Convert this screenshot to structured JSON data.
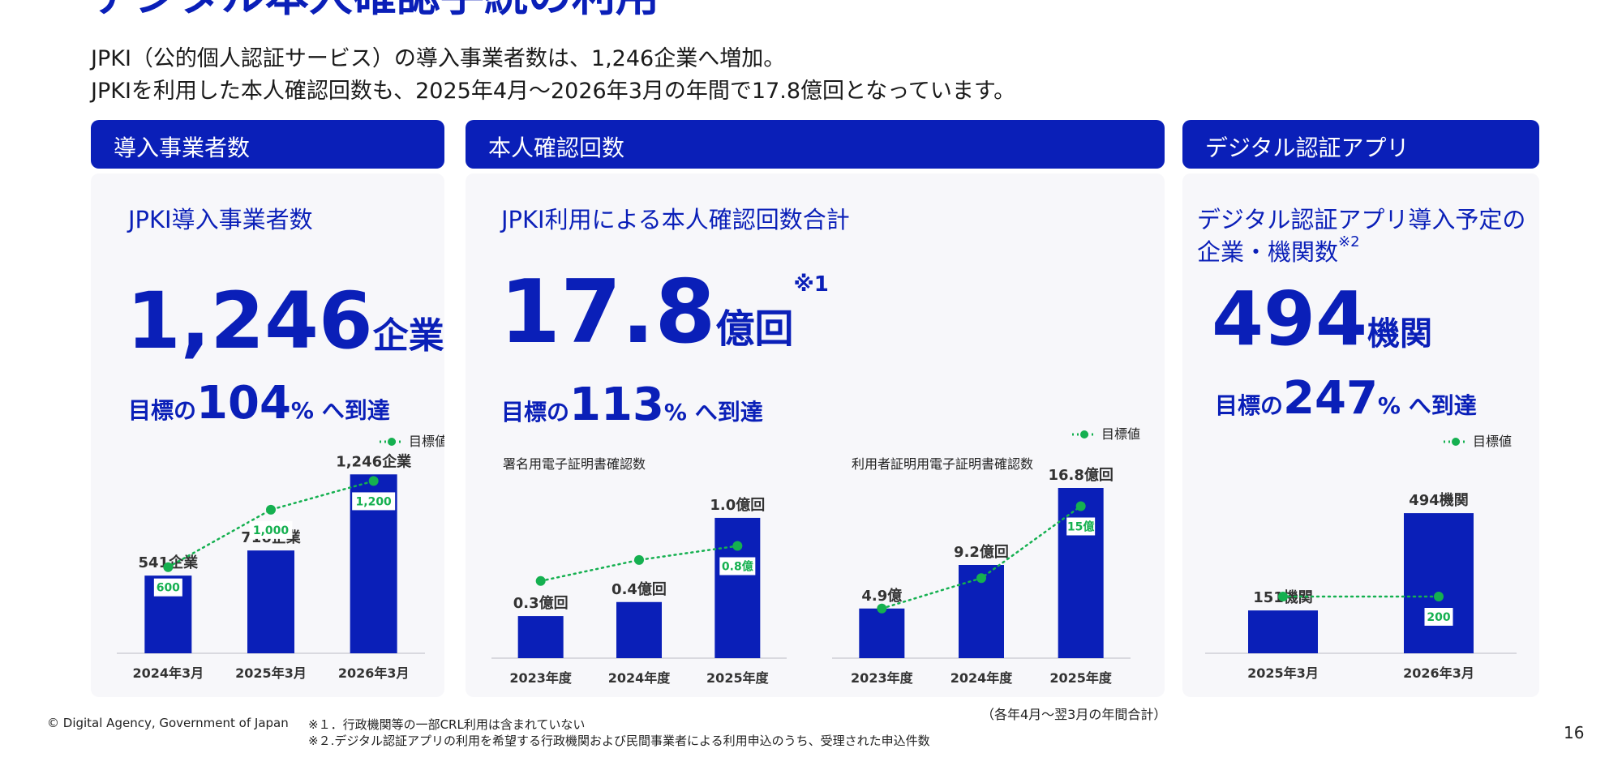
{
  "page": {
    "title": "デジタル本人確認手続の利用",
    "lead_lines": [
      "JPKI（公的個人認証サービス）の導入事業者数は、1,246企業へ増加。",
      "JPKIを利用した本人確認回数も、2025年4月～2026年3月の年間で17.8億回となっています。"
    ],
    "copyright": "© Digital Agency, Government of Japan",
    "notes": [
      "※１．行政機関等の一部CRL利用は含まれていない",
      "※２.デジタル認証アプリの利用を希望する行政機関および民間事業者による利用申込のうち、受理された申込件数"
    ],
    "period_note": "（各年4月～翌3月の年間合計）",
    "page_number": "16",
    "colors": {
      "accent": "#0a1fb8",
      "target_line": "#15b050",
      "panel_bg": "#f7f7fa"
    }
  },
  "panels": [
    {
      "header": "導入事業者数",
      "subtitle": "JPKI導入事業者数",
      "big_value": "1,246",
      "big_unit": "企業",
      "target_prefix": "目標の",
      "target_value": "104",
      "target_suffix": "% へ到達",
      "legend": "目標値"
    },
    {
      "header": "本人確認回数",
      "subtitle": "JPKI利用による本人確認回数合計",
      "big_value": "17.8",
      "big_unit": "億回",
      "big_note": "※1",
      "target_prefix": "目標の",
      "target_value": "113",
      "target_suffix": "% へ到達",
      "legend": "目標値"
    },
    {
      "header": "デジタル認証アプリ",
      "subtitle_lines": [
        "デジタル認証アプリ導入予定の",
        "企業・機関数"
      ],
      "subtitle_note": "※2",
      "big_value": "494",
      "big_unit": "機関",
      "target_prefix": "目標の",
      "target_value": "247",
      "target_suffix": "% へ到達",
      "legend": "目標値"
    }
  ],
  "chart_data": [
    {
      "type": "bar",
      "categories": [
        "2024年3月",
        "2025年3月",
        "2026年3月"
      ],
      "series": [
        {
          "name": "JPKI導入事業者数",
          "values": [
            541,
            716,
            1246
          ],
          "labels": [
            "541企業",
            "716企業",
            "1,246企業"
          ]
        },
        {
          "name": "目標値",
          "values": [
            600,
            1000,
            1200
          ],
          "labels": [
            "600",
            "1,000",
            "1,200"
          ]
        }
      ],
      "ylim": [
        0,
        1400
      ]
    },
    {
      "type": "bar",
      "title": "署名用電子証明書確認数",
      "categories": [
        "2023年度",
        "2024年度",
        "2025年度"
      ],
      "series": [
        {
          "name": "署名用電子証明書確認数",
          "values": [
            0.3,
            0.4,
            1.0
          ],
          "labels": [
            "0.3億回",
            "0.4億回",
            "1.0億回"
          ]
        },
        {
          "name": "目標値",
          "values": [
            0.55,
            0.7,
            0.8
          ],
          "labels": [
            "",
            "",
            "0.8億"
          ]
        }
      ],
      "ylim": [
        0,
        1.3
      ]
    },
    {
      "type": "bar",
      "title": "利用者証明用電子証明書確認数",
      "categories": [
        "2023年度",
        "2024年度",
        "2025年度"
      ],
      "series": [
        {
          "name": "利用者証明用電子証明書確認数",
          "values": [
            4.9,
            9.2,
            16.8
          ],
          "labels": [
            "4.9億",
            "9.2億回",
            "16.8億回"
          ]
        },
        {
          "name": "目標値",
          "values": [
            4.9,
            7.9,
            15.0
          ],
          "labels": [
            "",
            "",
            "15億"
          ]
        }
      ],
      "ylim": [
        0,
        18
      ]
    },
    {
      "type": "bar",
      "categories": [
        "2025年3月",
        "2026年3月"
      ],
      "series": [
        {
          "name": "デジタル認証アプリ導入予定の企業・機関数",
          "values": [
            151,
            494
          ],
          "labels": [
            "151機関",
            "494機関"
          ]
        },
        {
          "name": "目標値",
          "values": [
            200,
            200
          ],
          "labels": [
            "",
            "200"
          ]
        }
      ],
      "ylim": [
        0,
        600
      ]
    }
  ]
}
